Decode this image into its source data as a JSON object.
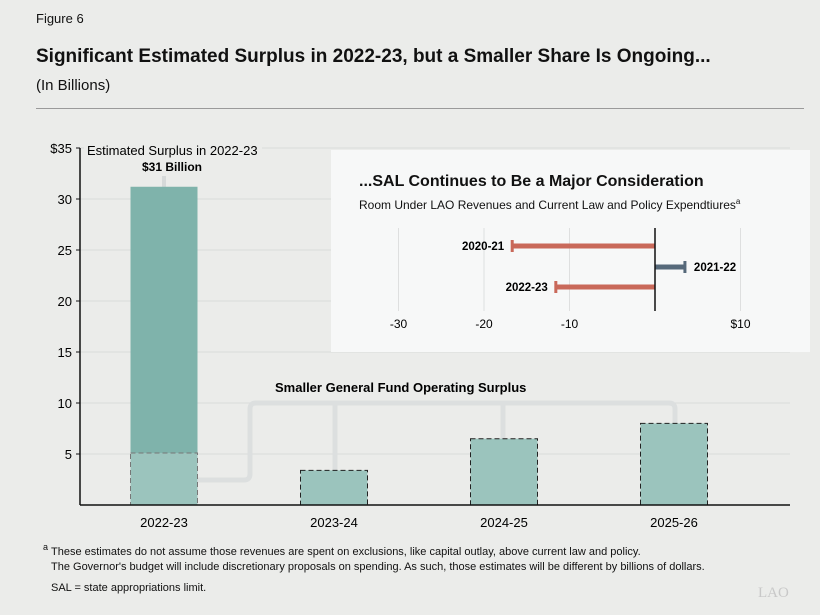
{
  "figure_label": "Figure 6",
  "title": "Significant Estimated Surplus in 2022-23, but a Smaller Share Is Ongoing...",
  "subtitle": "(In Billions)",
  "chart_data": [
    {
      "type": "bar",
      "categories": [
        "2022-23",
        "2023-24",
        "2024-25",
        "2025-26"
      ],
      "series": [
        {
          "name": "Estimated Surplus in 2022-23",
          "values": [
            31.2,
            null,
            null,
            null
          ]
        },
        {
          "name": "Smaller General Fund Operating Surplus",
          "values": [
            5.1,
            3.4,
            6.5,
            8.0
          ]
        }
      ],
      "ylim": [
        0,
        35
      ],
      "yticks": [
        5,
        10,
        15,
        20,
        25,
        30,
        35
      ],
      "ytick_labels": [
        "5",
        "10",
        "15",
        "20",
        "25",
        "30",
        "$35"
      ],
      "grid": true,
      "annotations": {
        "estimated_label": "Estimated Surplus in 2022-23",
        "total_label": "$31 Billion",
        "operating_label": "Smaller General Fund Operating Surplus"
      },
      "colors": {
        "total": "#7fb3ab",
        "operating": "#9bc4bd"
      }
    },
    {
      "type": "bar",
      "orientation": "horizontal",
      "title": "...SAL  Continues to Be a Major Consideration",
      "subtitle": "Room Under LAO Revenues and Current Law and Policy Expendtiures",
      "subtitle_footnote": "a",
      "categories": [
        "2020-21",
        "2021-22",
        "2022-23"
      ],
      "values": [
        -16.7,
        3.5,
        -11.6
      ],
      "xlim": [
        -30,
        10
      ],
      "xticks": [
        -30,
        -20,
        -10,
        10
      ],
      "xtick_labels": [
        "-30",
        "-20",
        "-10",
        "$10"
      ],
      "colors": {
        "negative": "#c9695a",
        "positive": "#56697a"
      }
    }
  ],
  "footnotes": {
    "mark": "a",
    "line1": "These estimates do not assume those revenues are spent on exclusions, like capital outlay, above current law and policy.",
    "line2": "The Governor's budget will include discretionary proposals on spending. As such, those estimates will be different by billions of dollars.",
    "sal": "SAL = state appropriations limit."
  },
  "logo": "LAO"
}
